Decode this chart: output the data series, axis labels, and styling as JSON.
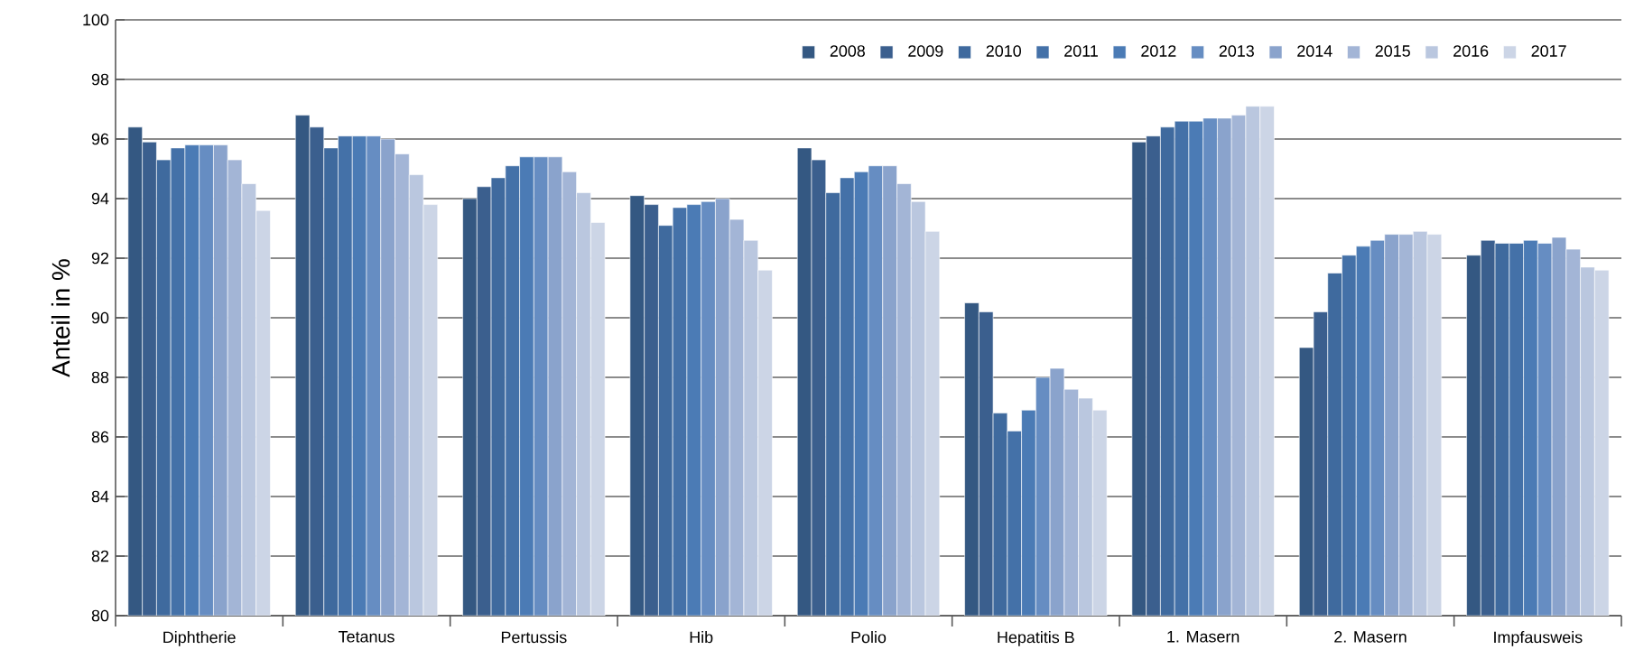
{
  "chart_data": {
    "type": "bar",
    "ylabel": "Anteil in %",
    "categories": [
      "Diphtherie",
      "Tetanus",
      "Pertussis",
      "Hib",
      "Polio",
      "Hepatitis B",
      "1. Masern",
      "2. Masern",
      "Impfausweis"
    ],
    "series": [
      {
        "name": "2008",
        "color": "#345882",
        "values": [
          96.4,
          96.8,
          94.0,
          94.1,
          95.7,
          90.5,
          95.9,
          89.0,
          92.1
        ]
      },
      {
        "name": "2009",
        "color": "#3b5f8e",
        "values": [
          95.9,
          96.4,
          94.4,
          93.8,
          95.3,
          90.2,
          96.1,
          90.2,
          92.6
        ]
      },
      {
        "name": "2010",
        "color": "#3f6a9e",
        "values": [
          95.3,
          95.7,
          94.7,
          93.1,
          94.2,
          86.8,
          96.4,
          91.5,
          92.5
        ]
      },
      {
        "name": "2011",
        "color": "#4471a8",
        "values": [
          95.7,
          96.1,
          95.1,
          93.7,
          94.7,
          86.2,
          96.6,
          92.1,
          92.5
        ]
      },
      {
        "name": "2012",
        "color": "#4b7bb5",
        "values": [
          95.8,
          96.1,
          95.4,
          93.8,
          94.9,
          86.9,
          96.6,
          92.4,
          92.6
        ]
      },
      {
        "name": "2013",
        "color": "#668dc2",
        "values": [
          95.8,
          96.1,
          95.4,
          93.9,
          95.1,
          88.0,
          96.7,
          92.6,
          92.5
        ]
      },
      {
        "name": "2014",
        "color": "#8aa3cc",
        "values": [
          95.8,
          96.0,
          95.4,
          94.0,
          95.1,
          88.3,
          96.7,
          92.8,
          92.7
        ]
      },
      {
        "name": "2015",
        "color": "#a3b5d6",
        "values": [
          95.3,
          95.5,
          94.9,
          93.3,
          94.5,
          87.6,
          96.8,
          92.8,
          92.3
        ]
      },
      {
        "name": "2016",
        "color": "#bac7df",
        "values": [
          94.5,
          94.8,
          94.2,
          92.6,
          93.9,
          87.3,
          97.1,
          92.9,
          91.7
        ]
      },
      {
        "name": "2017",
        "color": "#ccd5e6",
        "values": [
          93.6,
          93.8,
          93.2,
          91.6,
          92.9,
          86.9,
          97.1,
          92.8,
          91.6
        ]
      }
    ],
    "ylim": [
      80,
      100
    ],
    "yticks": [
      80,
      82,
      84,
      86,
      88,
      90,
      92,
      94,
      96,
      98,
      100
    ],
    "grid": "y",
    "legend": "top right"
  }
}
